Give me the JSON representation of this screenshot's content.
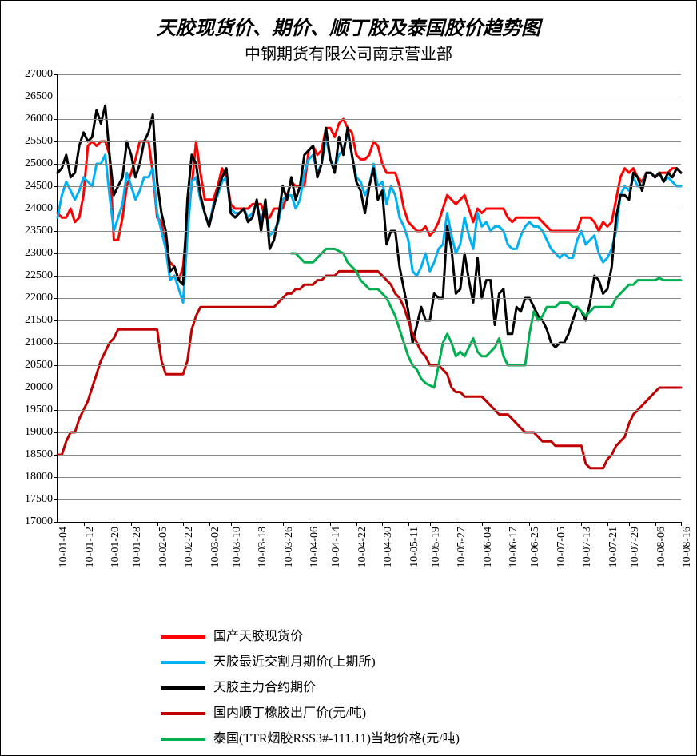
{
  "chart": {
    "type": "line",
    "title": "天胶现货价、期价、顺丁胶及泰国胶价趋势图",
    "subtitle": "中钢期货有限公司南京营业部",
    "title_fontsize": 24,
    "subtitle_fontsize": 20,
    "title_bold_italic": true,
    "background_color": "#ffffff",
    "border_color": "#000000",
    "grid_color": "#888888",
    "ylim": [
      17000,
      27000
    ],
    "ytick_step": 500,
    "yticks": [
      17000,
      17500,
      18000,
      18500,
      19000,
      19500,
      20000,
      20500,
      21000,
      21500,
      22000,
      22500,
      23000,
      23500,
      24000,
      24500,
      25000,
      25500,
      26000,
      26500,
      27000
    ],
    "x_labels": [
      "10-01-04",
      "10-01-12",
      "10-01-20",
      "10-01-28",
      "10-02-05",
      "10-02-22",
      "10-03-02",
      "10-03-10",
      "10-03-18",
      "10-03-26",
      "10-04-06",
      "10-04-14",
      "10-04-22",
      "10-04-30",
      "10-05-11",
      "10-05-19",
      "10-05-27",
      "10-06-04",
      "10-06-17",
      "10-06-25",
      "10-07-05",
      "10-07-13",
      "10-07-21",
      "10-07-29",
      "10-08-06",
      "10-08-16"
    ],
    "x_label_rotation": -90,
    "x_count": 145,
    "x_label_step_approx": 5.6,
    "line_width": 3,
    "series": [
      {
        "name": "国产天胶现货价",
        "color": "#ff0000",
        "values": [
          23900,
          23800,
          23800,
          24000,
          23700,
          23800,
          24300,
          25400,
          25500,
          25400,
          25500,
          25500,
          25200,
          23300,
          23300,
          23800,
          24500,
          24800,
          25100,
          25500,
          25500,
          25500,
          24800,
          23800,
          23700,
          23100,
          22800,
          22700,
          22400,
          22700,
          23800,
          24500,
          25500,
          24800,
          24200,
          24200,
          24200,
          24500,
          24900,
          24700,
          24100,
          24000,
          24000,
          24000,
          24000,
          24100,
          24100,
          24100,
          23800,
          23800,
          24000,
          24000,
          24000,
          24300,
          24600,
          24500,
          24500,
          24500,
          25300,
          25400,
          25200,
          25300,
          25800,
          25800,
          25600,
          25900,
          26000,
          25800,
          25700,
          25200,
          25100,
          25100,
          25200,
          25500,
          25400,
          25000,
          24800,
          24800,
          24800,
          24500,
          24000,
          23700,
          23600,
          23500,
          23500,
          23600,
          23400,
          23500,
          23700,
          24000,
          24300,
          24200,
          24100,
          24200,
          24300,
          24000,
          23700,
          24000,
          23900,
          24000,
          24000,
          24000,
          24000,
          24000,
          23800,
          23700,
          23800,
          23800,
          23800,
          23800,
          23800,
          23800,
          23700,
          23600,
          23500,
          23500,
          23500,
          23500,
          23500,
          23500,
          23500,
          23800,
          23800,
          23800,
          23700,
          23500,
          23700,
          23600,
          23700,
          24200,
          24700,
          24900,
          24800,
          24900,
          24700,
          24600,
          24800,
          24800,
          24700,
          24800,
          24800,
          24800,
          24900,
          24900,
          24800
        ]
      },
      {
        "name": "天胶最近交割月期价(上期所)",
        "color": "#00b0f0",
        "values": [
          23800,
          24300,
          24600,
          24400,
          24200,
          24400,
          24700,
          24600,
          24500,
          25000,
          25000,
          25200,
          24300,
          23500,
          23800,
          24100,
          24800,
          24500,
          24200,
          24400,
          24700,
          24700,
          24900,
          23900,
          23500,
          23100,
          22400,
          22500,
          22200,
          21900,
          23400,
          24600,
          24700,
          24200,
          23900,
          23600,
          24100,
          24300,
          24600,
          24700,
          24000,
          23900,
          23900,
          24000,
          23800,
          23900,
          24100,
          23700,
          24100,
          23400,
          23500,
          23700,
          24200,
          24300,
          24300,
          24000,
          24200,
          24800,
          25100,
          25200,
          24800,
          25000,
          25600,
          25100,
          24900,
          25200,
          25300,
          25700,
          25200,
          24700,
          24600,
          24300,
          24500,
          25000,
          24500,
          24600,
          24100,
          24500,
          24300,
          23800,
          23600,
          23300,
          22600,
          22500,
          22700,
          23000,
          22600,
          22800,
          23100,
          23200,
          23900,
          23400,
          23000,
          23200,
          23800,
          23400,
          23100,
          23900,
          23600,
          23700,
          23500,
          23600,
          23600,
          23500,
          23200,
          23100,
          23100,
          23400,
          23600,
          23700,
          23600,
          23600,
          23500,
          23300,
          23100,
          23000,
          22900,
          23000,
          22900,
          22900,
          23300,
          23500,
          23200,
          23300,
          23400,
          23000,
          22800,
          22900,
          23100,
          23500,
          24300,
          24500,
          24400,
          24700,
          24500,
          24500,
          24800,
          24800,
          24700,
          24800,
          24600,
          24700,
          24600,
          24500,
          24500
        ]
      },
      {
        "name": "天胶主力合约期价",
        "color": "#000000",
        "values": [
          24800,
          24900,
          25200,
          24700,
          24800,
          25400,
          25700,
          25500,
          25600,
          26200,
          25900,
          26300,
          25200,
          24300,
          24500,
          24700,
          25500,
          25200,
          24700,
          25000,
          25500,
          25700,
          26100,
          24600,
          23900,
          23500,
          22600,
          22700,
          22400,
          22300,
          24200,
          25200,
          25000,
          24300,
          23900,
          23600,
          24000,
          24400,
          24700,
          24900,
          23900,
          23800,
          23900,
          24000,
          23700,
          23800,
          24200,
          23500,
          24200,
          23100,
          23300,
          23800,
          24500,
          24200,
          24700,
          24200,
          24500,
          25200,
          25300,
          25400,
          24700,
          25000,
          25800,
          25100,
          24800,
          25600,
          25200,
          25800,
          25200,
          24600,
          24400,
          23900,
          24500,
          24900,
          24200,
          24400,
          23200,
          23500,
          23500,
          22700,
          22200,
          21700,
          21000,
          21400,
          21800,
          21500,
          21500,
          22100,
          22000,
          22000,
          23600,
          23100,
          22100,
          22200,
          23000,
          22400,
          21900,
          22900,
          22000,
          22400,
          22400,
          21400,
          22100,
          22200,
          21200,
          21200,
          21800,
          21700,
          22000,
          22000,
          21800,
          21600,
          21500,
          21300,
          21000,
          20900,
          21000,
          21000,
          21200,
          21500,
          21800,
          21700,
          21500,
          21900,
          22500,
          22400,
          22100,
          22200,
          22700,
          23800,
          24300,
          24300,
          24200,
          24800,
          24700,
          24400,
          24800,
          24800,
          24700,
          24800,
          24600,
          24800,
          24700,
          24900,
          24800
        ]
      },
      {
        "name": "国内顺丁橡胶出厂价(元/吨)",
        "color": "#c00000",
        "values": [
          18500,
          18500,
          18800,
          19000,
          19000,
          19300,
          19500,
          19700,
          20000,
          20300,
          20600,
          20800,
          21000,
          21100,
          21300,
          21300,
          21300,
          21300,
          21300,
          21300,
          21300,
          21300,
          21300,
          21300,
          20600,
          20300,
          20300,
          20300,
          20300,
          20300,
          20600,
          21300,
          21600,
          21800,
          21800,
          21800,
          21800,
          21800,
          21800,
          21800,
          21800,
          21800,
          21800,
          21800,
          21800,
          21800,
          21800,
          21800,
          21800,
          21800,
          21800,
          21900,
          22000,
          22100,
          22100,
          22200,
          22200,
          22300,
          22300,
          22300,
          22400,
          22400,
          22500,
          22500,
          22500,
          22600,
          22600,
          22600,
          22600,
          22600,
          22600,
          22600,
          22600,
          22600,
          22600,
          22500,
          22400,
          22300,
          22100,
          22000,
          21800,
          21500,
          21200,
          21000,
          20800,
          20700,
          20500,
          20500,
          20500,
          20400,
          20300,
          20000,
          19900,
          19900,
          19800,
          19800,
          19800,
          19800,
          19800,
          19700,
          19600,
          19500,
          19400,
          19400,
          19400,
          19300,
          19200,
          19100,
          19000,
          19000,
          19000,
          18900,
          18800,
          18800,
          18800,
          18700,
          18700,
          18700,
          18700,
          18700,
          18700,
          18700,
          18300,
          18200,
          18200,
          18200,
          18200,
          18400,
          18500,
          18700,
          18800,
          18900,
          19200,
          19400,
          19500,
          19600,
          19700,
          19800,
          19900,
          20000,
          20000,
          20000,
          20000,
          20000,
          20000
        ]
      },
      {
        "name": "泰国(TTR烟胶RSS3#-111.11)当地价格(元/吨)",
        "color": "#00b050",
        "start_index": 54,
        "values": [
          23000,
          23000,
          22900,
          22800,
          22800,
          22800,
          22900,
          23000,
          23100,
          23100,
          23100,
          23050,
          23000,
          22800,
          22700,
          22600,
          22400,
          22300,
          22200,
          22200,
          22200,
          22100,
          22000,
          21800,
          21600,
          21300,
          21000,
          20700,
          20500,
          20400,
          20200,
          20100,
          20050,
          20000,
          20500,
          21000,
          21200,
          21000,
          20700,
          20800,
          20700,
          20900,
          21100,
          20800,
          20700,
          20700,
          20800,
          20900,
          21100,
          20700,
          20500,
          20500,
          20500,
          20500,
          20500,
          21200,
          21700,
          21500,
          21600,
          21800,
          21800,
          21800,
          21900,
          21900,
          21900,
          21800,
          21800,
          21700,
          21600,
          21700,
          21800,
          21800,
          21800,
          21800,
          21800,
          22000,
          22100,
          22200,
          22300,
          22300,
          22400,
          22400,
          22400,
          22400,
          22400,
          22450,
          22400,
          22400,
          22400,
          22400,
          22400
        ]
      }
    ],
    "legend_font_size": 16,
    "axis_label_fontsize": 14
  }
}
